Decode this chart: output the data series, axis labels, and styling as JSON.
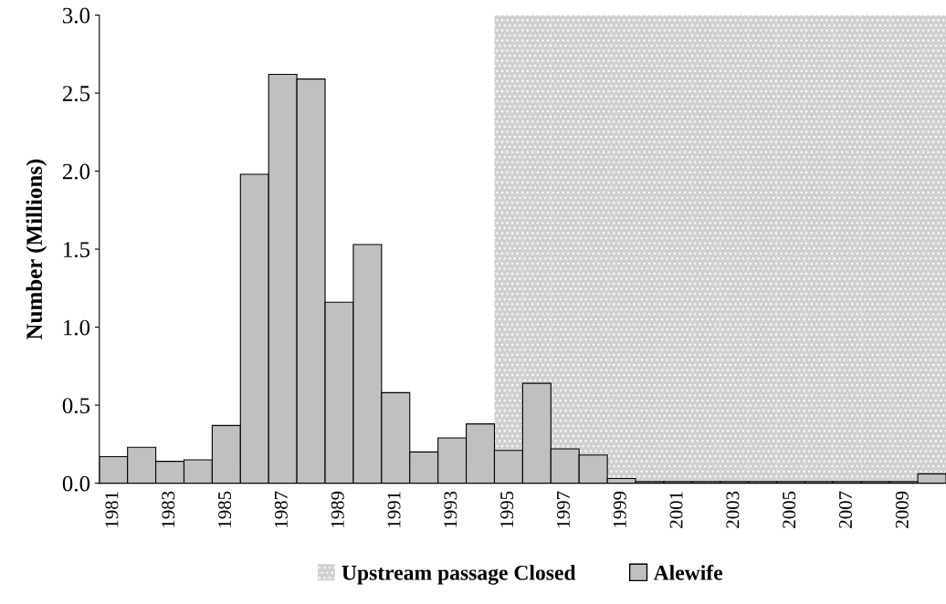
{
  "chart_data": {
    "type": "bar",
    "ylabel": "Number (Millions)",
    "categories": [
      "1981",
      null,
      "1983",
      null,
      "1985",
      null,
      "1987",
      null,
      "1989",
      null,
      "1991",
      null,
      "1993",
      null,
      "1995",
      null,
      "1997",
      null,
      "1999",
      null,
      "2001",
      null,
      "2003",
      null,
      "2005",
      null,
      "2007",
      null,
      "2009",
      null
    ],
    "series": [
      {
        "name": "Upstream passage Closed",
        "color": "#d0d0d0",
        "values": [
          null,
          null,
          null,
          null,
          null,
          null,
          null,
          null,
          null,
          null,
          null,
          null,
          null,
          null,
          3.0,
          3.0,
          3.0,
          3.0,
          3.0,
          3.0,
          3.0,
          3.0,
          3.0,
          3.0,
          3.0,
          3.0,
          3.0,
          3.0,
          3.0,
          3.0
        ]
      },
      {
        "name": "Alewife",
        "color": "#c0c0c0",
        "values": [
          0.17,
          0.23,
          0.14,
          0.15,
          0.37,
          1.98,
          2.62,
          2.59,
          1.16,
          1.53,
          0.58,
          0.2,
          0.29,
          0.38,
          0.21,
          0.64,
          0.22,
          0.18,
          0.03,
          0.01,
          0.01,
          0.01,
          0.01,
          0.01,
          0.01,
          0.01,
          0.01,
          0.01,
          0.01,
          0.06
        ]
      }
    ],
    "ylim": [
      0,
      3.0
    ],
    "yticks": [
      {
        "value": 0,
        "label": "0.0"
      },
      {
        "value": 0.5,
        "label": "0.5"
      },
      {
        "value": 1.0,
        "label": "1.0"
      },
      {
        "value": 1.5,
        "label": "1.5"
      },
      {
        "value": 2.0,
        "label": "2.0"
      },
      {
        "value": 2.5,
        "label": "2.5"
      },
      {
        "value": 3.0,
        "label": "3.0"
      }
    ],
    "grid": false,
    "legend": "bottom"
  }
}
